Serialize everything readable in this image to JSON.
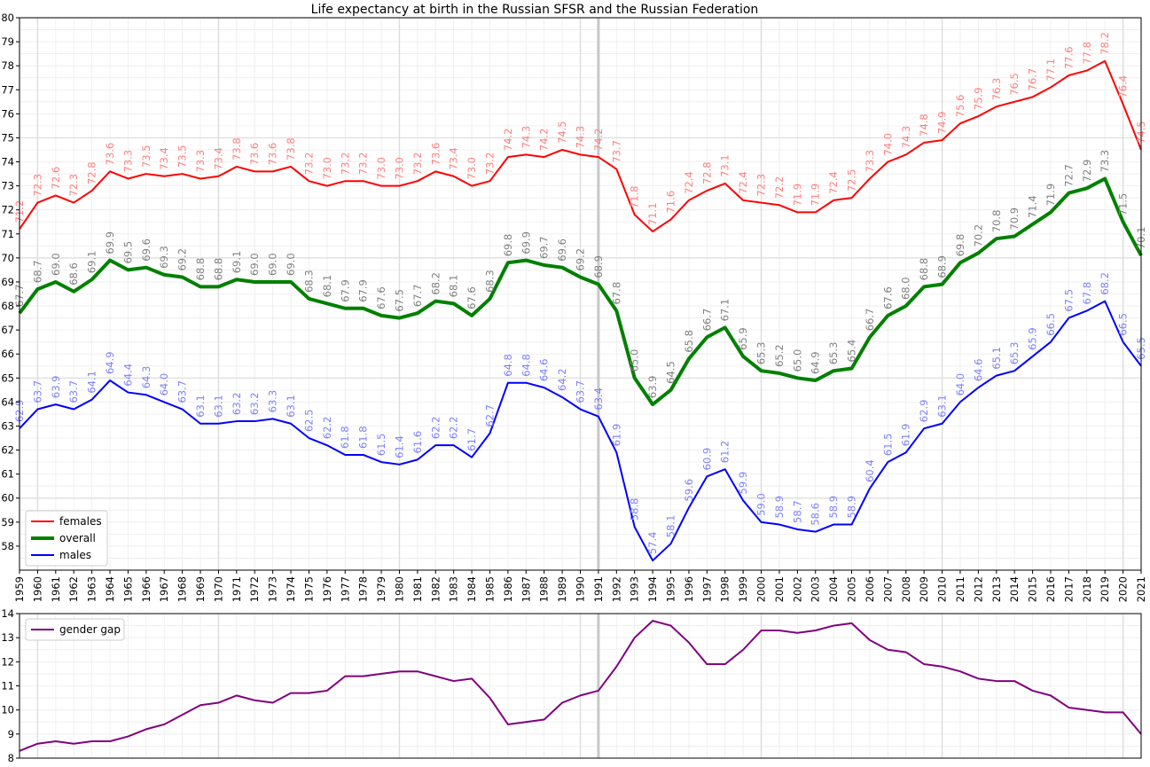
{
  "chart_data": [
    {
      "type": "line",
      "title": "Life expectancy at birth in the Russian SFSR and the Russian Federation",
      "xlabel": "",
      "ylabel": "",
      "ylim": [
        57,
        80
      ],
      "grid": true,
      "legend_position": "lower-left",
      "x": [
        1959,
        1960,
        1961,
        1962,
        1963,
        1964,
        1965,
        1966,
        1967,
        1968,
        1969,
        1970,
        1971,
        1972,
        1973,
        1974,
        1975,
        1976,
        1977,
        1978,
        1979,
        1980,
        1981,
        1982,
        1983,
        1984,
        1985,
        1986,
        1987,
        1988,
        1989,
        1990,
        1991,
        1992,
        1993,
        1994,
        1995,
        1996,
        1997,
        1998,
        1999,
        2000,
        2001,
        2002,
        2003,
        2004,
        2005,
        2006,
        2007,
        2008,
        2009,
        2010,
        2011,
        2012,
        2013,
        2014,
        2015,
        2016,
        2017,
        2018,
        2019,
        2020,
        2021
      ],
      "y_ticks": [
        58,
        59,
        60,
        61,
        62,
        63,
        64,
        65,
        66,
        67,
        68,
        69,
        70,
        71,
        72,
        73,
        74,
        75,
        76,
        77,
        78,
        79,
        80
      ],
      "marked_years": [
        1991
      ],
      "series": [
        {
          "name": "females",
          "color": "#ff0000",
          "label_color": "#ff7f7f",
          "values": [
            71.2,
            72.3,
            72.6,
            72.3,
            72.8,
            73.6,
            73.3,
            73.5,
            73.4,
            73.5,
            73.3,
            73.4,
            73.8,
            73.6,
            73.6,
            73.8,
            73.2,
            73.0,
            73.2,
            73.2,
            73.0,
            73.0,
            73.2,
            73.6,
            73.4,
            73.0,
            73.2,
            74.2,
            74.3,
            74.2,
            74.5,
            74.3,
            74.2,
            73.7,
            71.8,
            71.1,
            71.6,
            72.4,
            72.8,
            73.1,
            72.4,
            72.3,
            72.2,
            71.9,
            71.9,
            72.4,
            72.5,
            73.3,
            74.0,
            74.3,
            74.8,
            74.9,
            75.6,
            75.9,
            76.3,
            76.5,
            76.7,
            77.1,
            77.6,
            77.8,
            78.2,
            76.4,
            74.5
          ]
        },
        {
          "name": "overall",
          "color": "#008000",
          "label_color": "#808080",
          "values": [
            67.7,
            68.7,
            69.0,
            68.6,
            69.1,
            69.9,
            69.5,
            69.6,
            69.3,
            69.2,
            68.8,
            68.8,
            69.1,
            69.0,
            69.0,
            69.0,
            68.3,
            68.1,
            67.9,
            67.9,
            67.6,
            67.5,
            67.7,
            68.2,
            68.1,
            67.6,
            68.3,
            69.8,
            69.9,
            69.7,
            69.6,
            69.2,
            68.9,
            67.8,
            65.0,
            63.9,
            64.5,
            65.8,
            66.7,
            67.1,
            65.9,
            65.3,
            65.2,
            65.0,
            64.9,
            65.3,
            65.4,
            66.7,
            67.6,
            68.0,
            68.8,
            68.9,
            69.8,
            70.2,
            70.8,
            70.9,
            71.4,
            71.9,
            72.7,
            72.9,
            73.3,
            71.5,
            70.1
          ]
        },
        {
          "name": "males",
          "color": "#0000ff",
          "label_color": "#7f7fff",
          "values": [
            62.9,
            63.7,
            63.9,
            63.7,
            64.1,
            64.9,
            64.4,
            64.3,
            64.0,
            63.7,
            63.1,
            63.1,
            63.2,
            63.2,
            63.3,
            63.1,
            62.5,
            62.2,
            61.8,
            61.8,
            61.5,
            61.4,
            61.6,
            62.2,
            62.2,
            61.7,
            62.7,
            64.8,
            64.8,
            64.6,
            64.2,
            63.7,
            63.4,
            61.9,
            58.8,
            57.4,
            58.1,
            59.6,
            60.9,
            61.2,
            59.9,
            59.0,
            58.9,
            58.7,
            58.6,
            58.9,
            58.9,
            60.4,
            61.5,
            61.9,
            62.9,
            63.1,
            64.0,
            64.6,
            65.1,
            65.3,
            65.9,
            66.5,
            67.5,
            67.8,
            68.2,
            66.5,
            65.5
          ]
        }
      ]
    },
    {
      "type": "line",
      "title": "",
      "xlabel": "",
      "ylabel": "",
      "ylim": [
        8,
        14
      ],
      "grid": true,
      "legend_position": "top-left",
      "y_ticks": [
        8,
        9,
        10,
        11,
        12,
        13,
        14
      ],
      "series": [
        {
          "name": "gender gap",
          "color": "#800080",
          "values": [
            8.3,
            8.6,
            8.7,
            8.6,
            8.7,
            8.7,
            8.9,
            9.2,
            9.4,
            9.8,
            10.2,
            10.3,
            10.6,
            10.4,
            10.3,
            10.7,
            10.7,
            10.8,
            11.4,
            11.4,
            11.5,
            11.6,
            11.6,
            11.4,
            11.2,
            11.3,
            10.5,
            9.4,
            9.5,
            9.6,
            10.3,
            10.6,
            10.8,
            11.8,
            13.0,
            13.7,
            13.5,
            12.8,
            11.9,
            11.9,
            12.5,
            13.3,
            13.3,
            13.2,
            13.3,
            13.5,
            13.6,
            12.9,
            12.5,
            12.4,
            11.9,
            11.8,
            11.6,
            11.3,
            11.2,
            11.2,
            10.8,
            10.6,
            10.1,
            10.0,
            9.9,
            9.9,
            9.0
          ]
        }
      ]
    }
  ]
}
